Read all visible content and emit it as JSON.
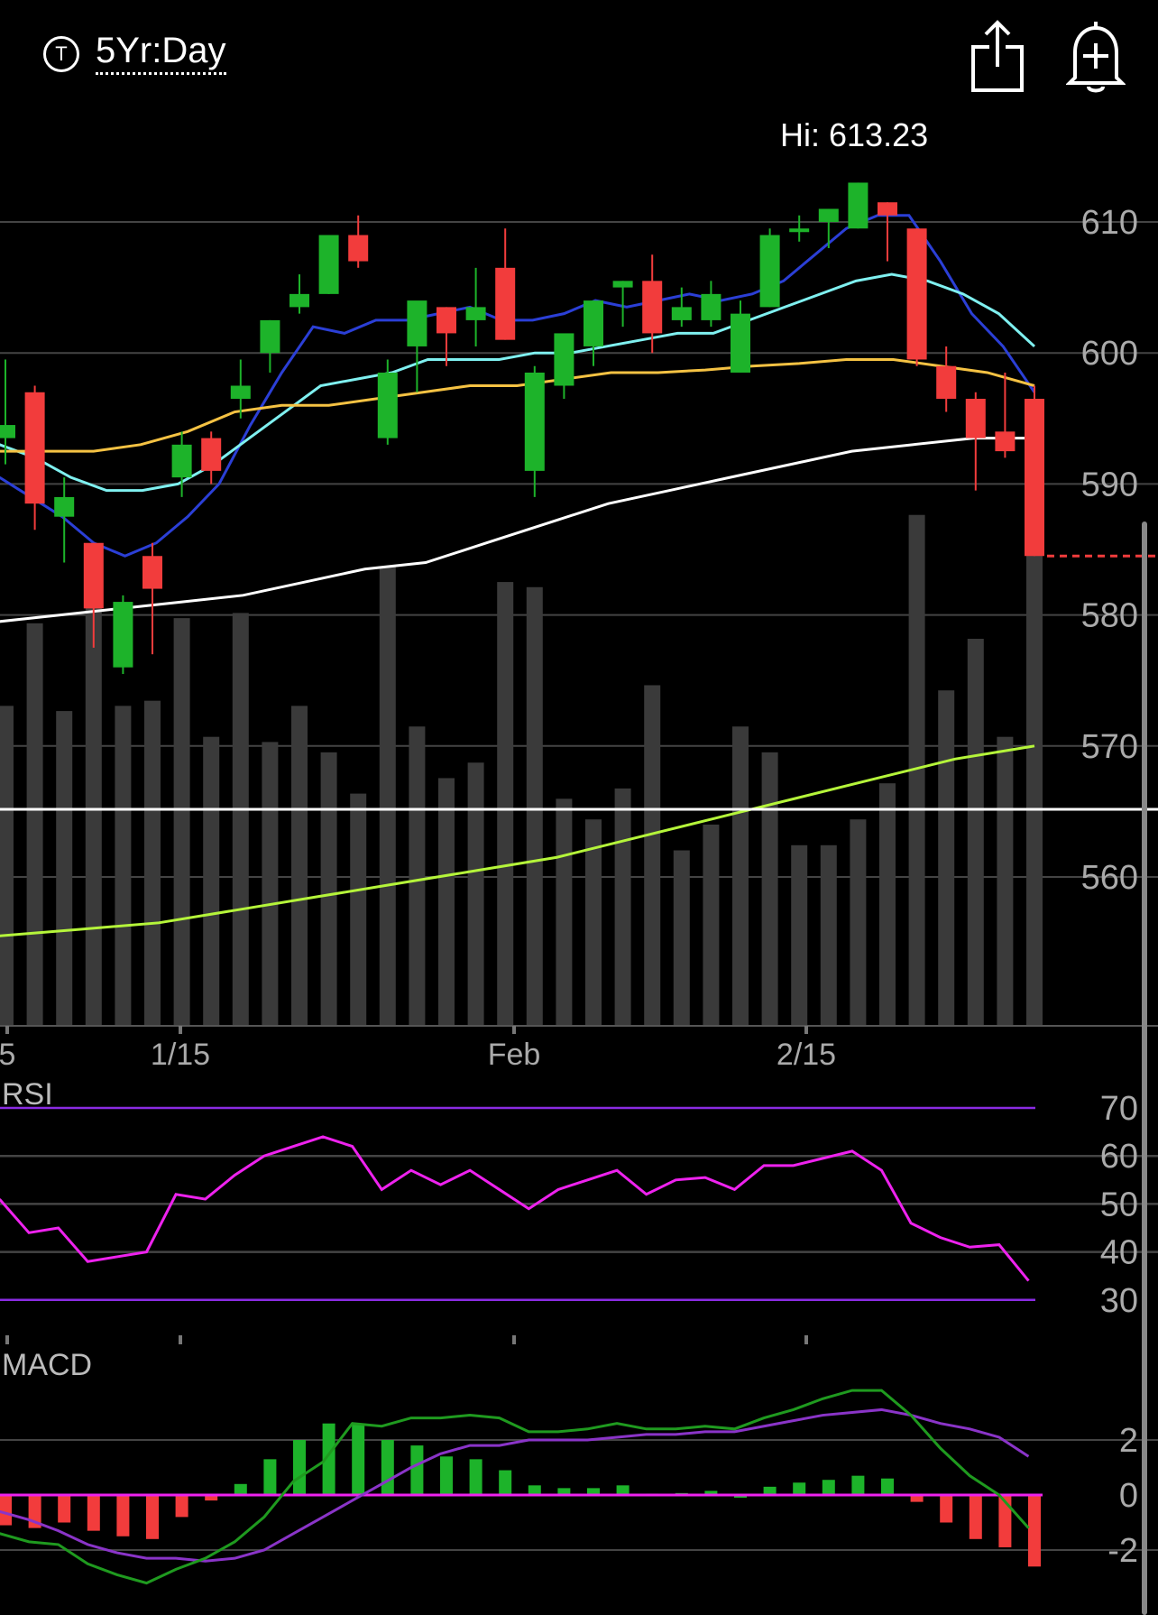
{
  "header": {
    "ticker_icon": "T",
    "range_label": "5Yr:Day",
    "share_icon": "share-icon",
    "alert_icon": "add-alert-bell-icon"
  },
  "colors": {
    "up": "#1db32a",
    "down": "#f23c3c",
    "volume": "#3a3a3a",
    "ma_fast": "#2b3fd6",
    "ma_cyan": "#7ff0f0",
    "ma_gold": "#f5c243",
    "ma_white": "#ffffff",
    "ma_lime": "#b5f53a",
    "rsi_line": "#ee22ee",
    "rsi_bounds": "#8a2be2",
    "macd_line": "#1f9a1f",
    "macd_signal": "#8a34c8",
    "macd_zero": "#ee22ee"
  },
  "chart_data": [
    {
      "type": "candlestick",
      "hi_label": "Hi: 613.23",
      "ylim": [
        550,
        613
      ],
      "yticks": [
        610,
        600,
        590,
        580,
        570,
        560
      ],
      "xticks": [
        {
          "label": "5",
          "index": -6
        },
        {
          "label": "1/15",
          "index": 6
        },
        {
          "label": "Feb",
          "index": 17
        },
        {
          "label": "2/15",
          "index": 27
        }
      ],
      "dates_hint": "trading days",
      "candles": [
        {
          "o": 593.5,
          "h": 599.5,
          "l": 591.5,
          "c": 594.5
        },
        {
          "o": 597.0,
          "h": 597.5,
          "l": 586.5,
          "c": 588.5
        },
        {
          "o": 587.5,
          "h": 590.5,
          "l": 584.0,
          "c": 589.0
        },
        {
          "o": 585.5,
          "h": 585.5,
          "l": 577.5,
          "c": 580.5
        },
        {
          "o": 576.0,
          "h": 581.5,
          "l": 575.5,
          "c": 581.0
        },
        {
          "o": 584.5,
          "h": 585.5,
          "l": 577.0,
          "c": 582.0
        },
        {
          "o": 590.5,
          "h": 594.0,
          "l": 589.0,
          "c": 593.0
        },
        {
          "o": 593.5,
          "h": 594.0,
          "l": 590.0,
          "c": 591.0
        },
        {
          "o": 596.5,
          "h": 599.5,
          "l": 595.0,
          "c": 597.5
        },
        {
          "o": 600.0,
          "h": 602.5,
          "l": 598.5,
          "c": 602.5
        },
        {
          "o": 603.5,
          "h": 606.0,
          "l": 603.0,
          "c": 604.5
        },
        {
          "o": 604.5,
          "h": 609.0,
          "l": 604.5,
          "c": 609.0
        },
        {
          "o": 609.0,
          "h": 610.5,
          "l": 606.5,
          "c": 607.0
        },
        {
          "o": 593.5,
          "h": 599.5,
          "l": 593.0,
          "c": 598.5
        },
        {
          "o": 600.5,
          "h": 603.5,
          "l": 597.0,
          "c": 604.0
        },
        {
          "o": 603.5,
          "h": 603.5,
          "l": 599.0,
          "c": 601.5
        },
        {
          "o": 602.5,
          "h": 606.5,
          "l": 600.5,
          "c": 603.5
        },
        {
          "o": 606.5,
          "h": 609.5,
          "l": 601.0,
          "c": 601.0
        },
        {
          "o": 591.0,
          "h": 599.0,
          "l": 589.0,
          "c": 598.5
        },
        {
          "o": 597.5,
          "h": 601.0,
          "l": 596.5,
          "c": 601.5
        },
        {
          "o": 600.5,
          "h": 604.0,
          "l": 599.0,
          "c": 604.0
        },
        {
          "o": 605.0,
          "h": 605.5,
          "l": 602.0,
          "c": 605.5
        },
        {
          "o": 605.5,
          "h": 607.5,
          "l": 600.0,
          "c": 601.5
        },
        {
          "o": 602.5,
          "h": 605.0,
          "l": 602.0,
          "c": 603.5
        },
        {
          "o": 602.5,
          "h": 605.5,
          "l": 602.0,
          "c": 604.5
        },
        {
          "o": 598.5,
          "h": 604.0,
          "l": 598.5,
          "c": 603.0
        },
        {
          "o": 603.5,
          "h": 609.5,
          "l": 603.5,
          "c": 609.0
        },
        {
          "o": 609.5,
          "h": 610.5,
          "l": 608.5,
          "c": 609.5
        },
        {
          "o": 610.0,
          "h": 611.0,
          "l": 608.0,
          "c": 611.0
        },
        {
          "o": 609.5,
          "h": 613.0,
          "l": 609.5,
          "c": 613.0
        },
        {
          "o": 611.5,
          "h": 611.5,
          "l": 607.0,
          "c": 610.5
        },
        {
          "o": 609.5,
          "h": 609.5,
          "l": 599.0,
          "c": 599.5
        },
        {
          "o": 599.0,
          "h": 600.5,
          "l": 595.5,
          "c": 596.5
        },
        {
          "o": 596.5,
          "h": 597.0,
          "l": 589.5,
          "c": 593.5
        },
        {
          "o": 594.0,
          "h": 598.5,
          "l": 592.0,
          "c": 592.5
        },
        {
          "o": 596.5,
          "h": 597.5,
          "l": 584.5,
          "c": 584.5
        }
      ],
      "volume_relative": [
        0.62,
        0.78,
        0.61,
        0.88,
        0.62,
        0.63,
        0.79,
        0.56,
        0.8,
        0.55,
        0.62,
        0.53,
        0.45,
        0.89,
        0.58,
        0.48,
        0.51,
        0.86,
        0.85,
        0.44,
        0.4,
        0.46,
        0.66,
        0.34,
        0.39,
        0.58,
        0.53,
        0.35,
        0.35,
        0.4,
        0.47,
        0.99,
        0.65,
        0.75,
        0.56,
        0.98
      ],
      "moving_averages": [
        {
          "color_key": "ma_fast",
          "values": [
            590.5,
            589.0,
            587.5,
            585.5,
            584.5,
            585.5,
            587.5,
            590.0,
            594.5,
            598.5,
            602.0,
            601.5,
            602.5,
            602.5,
            603.0,
            603.5,
            602.5,
            602.5,
            603.0,
            604.0,
            603.5,
            604.0,
            604.5,
            604.0,
            604.5,
            605.5,
            607.5,
            609.5,
            610.5,
            610.5,
            607.0,
            603.0,
            600.5,
            597.0
          ]
        },
        {
          "color_key": "ma_cyan",
          "values": [
            593.0,
            592.0,
            590.5,
            589.5,
            589.5,
            590.0,
            591.5,
            593.5,
            595.5,
            597.5,
            598.0,
            598.5,
            599.5,
            599.5,
            599.5,
            600.0,
            600.0,
            600.5,
            601.0,
            601.5,
            601.5,
            602.5,
            603.5,
            604.5,
            605.5,
            606.0,
            605.5,
            604.5,
            603.0,
            600.5
          ]
        },
        {
          "color_key": "ma_gold",
          "values": [
            592.5,
            592.5,
            592.5,
            593.0,
            594.0,
            595.5,
            596.0,
            596.0,
            596.5,
            597.0,
            597.5,
            597.5,
            598.0,
            598.5,
            598.5,
            598.7,
            599.0,
            599.2,
            599.5,
            599.5,
            599.0,
            598.5,
            597.5
          ]
        },
        {
          "color_key": "ma_white",
          "values": [
            579.5,
            580.0,
            580.5,
            581.0,
            581.5,
            582.5,
            583.5,
            584.0,
            585.5,
            587.0,
            588.5,
            589.5,
            590.5,
            591.5,
            592.5,
            593.0,
            593.5,
            593.5
          ]
        },
        {
          "color_key": "ma_lime",
          "values": [
            555.5,
            556.0,
            556.5,
            557.5,
            558.5,
            559.5,
            560.5,
            561.5,
            563.0,
            564.5,
            566.0,
            567.5,
            569.0,
            570.0
          ]
        }
      ],
      "last_price_line": 584.5
    },
    {
      "type": "line",
      "title": "RSI",
      "yticks": [
        70,
        60,
        50,
        40,
        30
      ],
      "ylim": [
        30,
        70
      ],
      "bounds": [
        70,
        30
      ],
      "values": [
        51,
        44,
        45,
        38,
        39,
        40,
        52,
        51,
        56,
        60,
        62,
        64,
        62,
        53,
        57,
        54,
        57,
        53,
        49,
        53,
        55,
        57,
        52,
        55,
        55.5,
        53,
        58,
        58,
        59.5,
        61,
        57,
        46,
        43,
        41,
        41.5,
        34
      ]
    },
    {
      "type": "bar",
      "title": "MACD",
      "yticks": [
        2,
        0,
        -2
      ],
      "ylim": [
        -3.5,
        3
      ],
      "histogram": [
        -1.1,
        -1.2,
        -1.0,
        -1.3,
        -1.5,
        -1.6,
        -0.8,
        -0.2,
        0.4,
        1.3,
        2.0,
        2.6,
        2.6,
        2.0,
        1.8,
        1.4,
        1.3,
        0.9,
        0.35,
        0.25,
        0.25,
        0.35,
        0.05,
        0.07,
        0.15,
        0.0,
        0.3,
        0.45,
        0.55,
        0.7,
        0.6,
        -0.25,
        -1.0,
        -1.6,
        -1.9,
        -2.6
      ],
      "macd_line": [
        -1.4,
        -1.7,
        -1.8,
        -2.5,
        -2.9,
        -3.2,
        -2.7,
        -2.3,
        -1.7,
        -0.8,
        0.5,
        1.2,
        2.6,
        2.5,
        2.8,
        2.8,
        2.9,
        2.8,
        2.3,
        2.3,
        2.4,
        2.6,
        2.4,
        2.4,
        2.5,
        2.4,
        2.8,
        3.1,
        3.5,
        3.8,
        3.8,
        2.9,
        1.7,
        0.7,
        0.0,
        -1.2
      ],
      "signal_line": [
        -0.6,
        -0.9,
        -1.3,
        -1.8,
        -2.1,
        -2.3,
        -2.3,
        -2.4,
        -2.3,
        -2.0,
        -1.4,
        -0.8,
        -0.2,
        0.4,
        1.0,
        1.5,
        1.8,
        1.8,
        2.0,
        2.0,
        2.0,
        2.1,
        2.2,
        2.2,
        2.3,
        2.3,
        2.5,
        2.7,
        2.9,
        3.0,
        3.1,
        2.9,
        2.6,
        2.4,
        2.1,
        1.4
      ]
    }
  ]
}
